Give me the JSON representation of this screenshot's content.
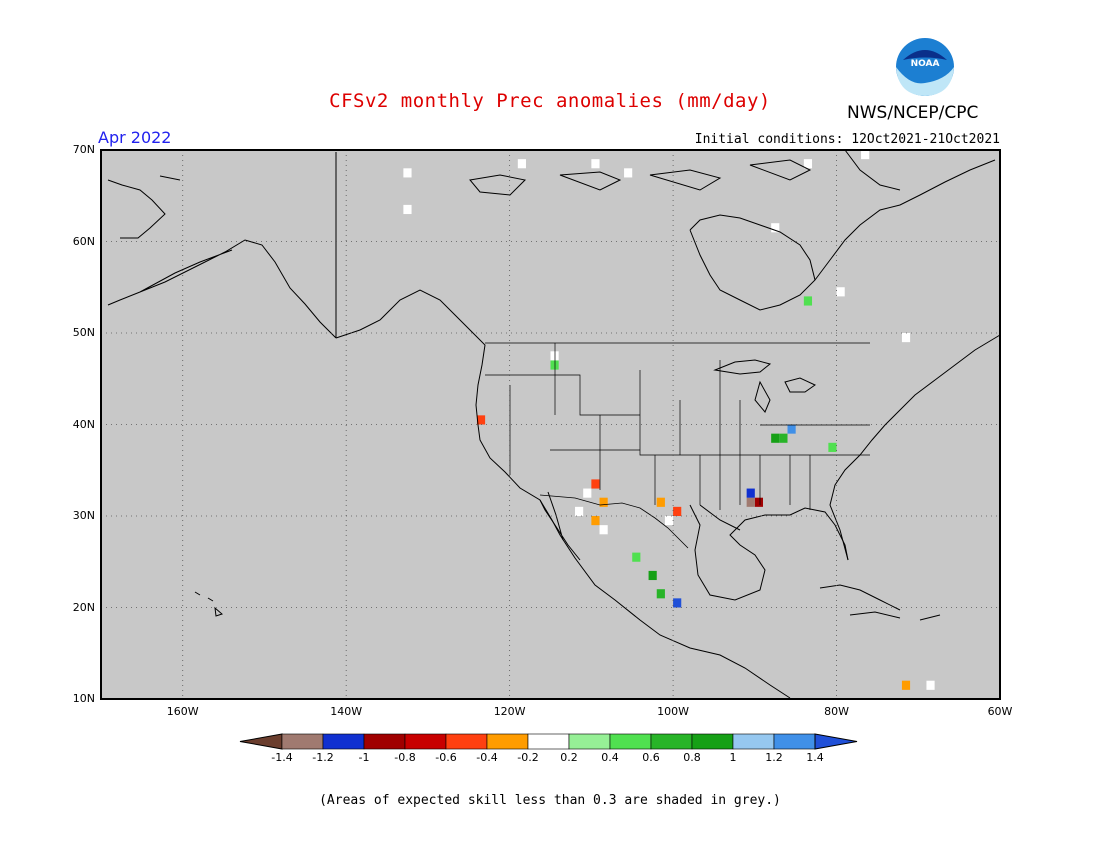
{
  "title": "CFSv2 monthly Prec anomalies (mm/day)",
  "agency": "NWS/NCEP/CPC",
  "logo_text": "NOAA",
  "target_month": "Apr 2022",
  "initial_conditions": "Initial conditions: 12Oct2021-21Oct2021",
  "lat_labels": [
    "70N",
    "60N",
    "50N",
    "40N",
    "30N",
    "20N",
    "10N"
  ],
  "lon_labels": [
    "160W",
    "140W",
    "120W",
    "100W",
    "80W",
    "60W"
  ],
  "colorbar": {
    "labels": [
      "-1.4",
      "-1.2",
      "-1",
      "-0.8",
      "-0.6",
      "-0.4",
      "-0.2",
      "0.2",
      "0.4",
      "0.6",
      "0.8",
      "1",
      "1.2",
      "1.4"
    ],
    "colors": [
      "#6b3e2e",
      "#a07a70",
      "#1030d0",
      "#a00000",
      "#c80000",
      "#ff4010",
      "#ff9c00",
      "#ffffff",
      "#96f096",
      "#50e050",
      "#28b428",
      "#16a016",
      "#96c8f0",
      "#4090e8",
      "#2050d8"
    ]
  },
  "footnote": "(Areas of expected skill less than 0.3 are shaded in grey.)",
  "map": {
    "background_color": "#c8c8c8",
    "lon_range": [
      -170,
      -60
    ],
    "lat_range": [
      10,
      70
    ],
    "grid": true,
    "anomaly_cells": [
      {
        "lon": -133,
        "lat": 67,
        "value": 0.0
      },
      {
        "lon": -133,
        "lat": 63,
        "value": 0.0
      },
      {
        "lon": -119,
        "lat": 68,
        "value": 0.0
      },
      {
        "lon": -110,
        "lat": 68,
        "value": 0.0
      },
      {
        "lon": -106,
        "lat": 67,
        "value": 0.0
      },
      {
        "lon": -88,
        "lat": 61,
        "value": 0.0
      },
      {
        "lon": -84,
        "lat": 68,
        "value": 0.0
      },
      {
        "lon": -77,
        "lat": 69,
        "value": 0.0
      },
      {
        "lon": -84,
        "lat": 53,
        "value": 0.5
      },
      {
        "lon": -80,
        "lat": 54,
        "value": 0.0
      },
      {
        "lon": -72,
        "lat": 49,
        "value": 0.0
      },
      {
        "lon": -115,
        "lat": 47,
        "value": 0.0
      },
      {
        "lon": -115,
        "lat": 46,
        "value": 0.4
      },
      {
        "lon": -124,
        "lat": 40,
        "value": -0.6
      },
      {
        "lon": -88,
        "lat": 38,
        "value": 0.8
      },
      {
        "lon": -87,
        "lat": 38,
        "value": 0.6
      },
      {
        "lon": -86,
        "lat": 39,
        "value": 1.2
      },
      {
        "lon": -81,
        "lat": 37,
        "value": 0.4
      },
      {
        "lon": -110,
        "lat": 33,
        "value": -0.6
      },
      {
        "lon": -111,
        "lat": 32,
        "value": 0.0
      },
      {
        "lon": -109,
        "lat": 31,
        "value": -0.4
      },
      {
        "lon": -112,
        "lat": 30,
        "value": 0.0
      },
      {
        "lon": -109,
        "lat": 28,
        "value": 0.0
      },
      {
        "lon": -110,
        "lat": 29,
        "value": -0.4
      },
      {
        "lon": -102,
        "lat": 31,
        "value": -0.4
      },
      {
        "lon": -100,
        "lat": 30,
        "value": -0.6
      },
      {
        "lon": -101,
        "lat": 29,
        "value": 0.0
      },
      {
        "lon": -105,
        "lat": 25,
        "value": 0.4
      },
      {
        "lon": -103,
        "lat": 23,
        "value": 0.8
      },
      {
        "lon": -102,
        "lat": 21,
        "value": 0.6
      },
      {
        "lon": -100,
        "lat": 20,
        "value": 1.4
      },
      {
        "lon": -90,
        "lat": 31,
        "value": -1.0
      },
      {
        "lon": -91,
        "lat": 31,
        "value": -1.4
      },
      {
        "lon": -91,
        "lat": 32,
        "value": -1.2
      },
      {
        "lon": -72,
        "lat": 11,
        "value": -0.4
      },
      {
        "lon": -69,
        "lat": 11,
        "value": 0.0
      }
    ]
  }
}
